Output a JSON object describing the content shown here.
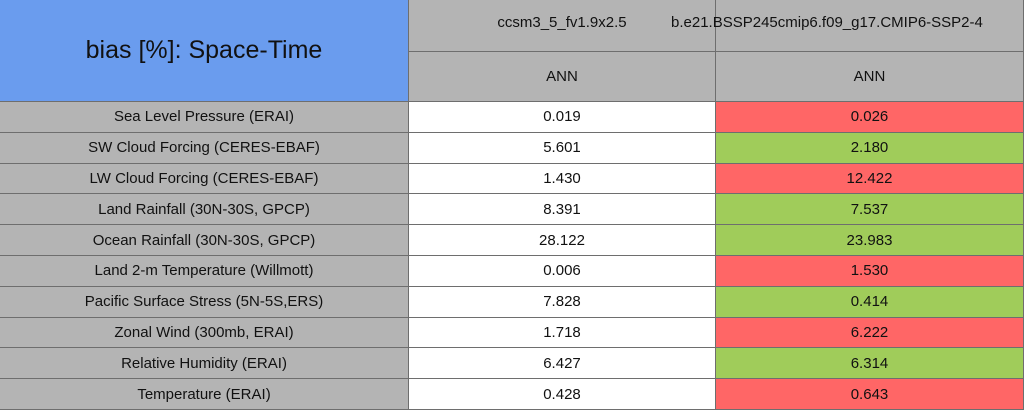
{
  "table": {
    "title": "bias [%]: Space-Time",
    "columns": [
      "ccsm3_5_fv1.9x2.5",
      "b.e21.BSSP245cmip6.f09_g17.CMIP6-SSP2-4"
    ],
    "subheaders": [
      "ANN",
      "ANN"
    ],
    "rows": [
      [
        "Sea Level Pressure (ERAI)",
        "0.019",
        "0.026"
      ],
      [
        "SW Cloud Forcing (CERES-EBAF)",
        "5.601",
        "2.180"
      ],
      [
        "LW Cloud Forcing (CERES-EBAF)",
        "1.430",
        "12.422"
      ],
      [
        "Land Rainfall (30N-30S, GPCP)",
        "8.391",
        "7.537"
      ],
      [
        "Ocean Rainfall (30N-30S, GPCP)",
        "28.122",
        "23.983"
      ],
      [
        "Land 2-m Temperature (Willmott)",
        "0.006",
        "1.530"
      ],
      [
        "Pacific Surface Stress (5N-5S,ERS)",
        "7.828",
        "0.414"
      ],
      [
        "Zonal Wind (300mb, ERAI)",
        "1.718",
        "6.222"
      ],
      [
        "Relative Humidity (ERAI)",
        "6.427",
        "6.314"
      ],
      [
        "Temperature (ERAI)",
        "0.428",
        "0.643"
      ]
    ],
    "highlight_colors": [
      "#ff6666",
      "#a0cc5a",
      "#ff6666",
      "#a0cc5a",
      "#a0cc5a",
      "#ff6666",
      "#a0cc5a",
      "#ff6666",
      "#a0cc5a",
      "#ff6666"
    ]
  }
}
